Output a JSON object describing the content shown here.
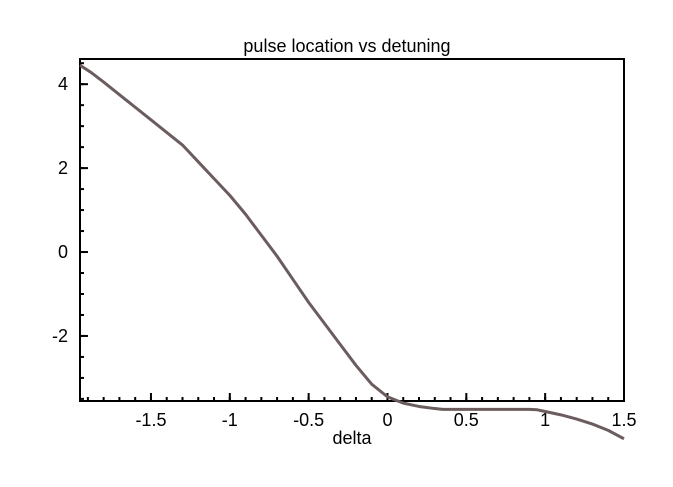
{
  "chart_data": {
    "type": "line",
    "title": "pulse location vs detuning",
    "xlabel": "delta",
    "ylabel": "",
    "xlim": [
      -1.95,
      1.5
    ],
    "ylim": [
      -3.55,
      4.6
    ],
    "x_ticks": [
      -1.5,
      -1,
      -0.5,
      0,
      0.5,
      1,
      1.5
    ],
    "x_tick_labels": [
      "-1.5",
      "-1",
      "-0.5",
      "0",
      "0.5",
      "1",
      "1.5"
    ],
    "y_ticks": [
      4,
      2,
      0,
      -2
    ],
    "y_tick_labels": [
      "4",
      "2",
      "0",
      "-2"
    ],
    "grid": false,
    "series": [
      {
        "name": "",
        "color": "#6b5d5e",
        "x": [
          -1.95,
          -1.88,
          -1.8,
          -1.7,
          -1.6,
          -1.5,
          -1.4,
          -1.3,
          -1.2,
          -1.1,
          -1.0,
          -0.9,
          -0.8,
          -0.7,
          -0.6,
          -0.5,
          -0.45,
          -0.4,
          -0.3,
          -0.2,
          -0.1,
          -0.05,
          0.0,
          0.1,
          0.2,
          0.3,
          0.35,
          0.5,
          0.7,
          0.9,
          0.95,
          1.0,
          1.1,
          1.2,
          1.3,
          1.4,
          1.5
        ],
        "y": [
          4.45,
          4.28,
          4.05,
          3.75,
          3.45,
          3.15,
          2.85,
          2.55,
          2.15,
          1.75,
          1.35,
          0.9,
          0.4,
          -0.1,
          -0.65,
          -1.2,
          -1.45,
          -1.7,
          -2.2,
          -2.7,
          -3.15,
          -3.3,
          -3.45,
          -3.6,
          -3.68,
          -3.73,
          -3.75,
          -3.75,
          -3.75,
          -3.75,
          -3.76,
          -3.8,
          -3.88,
          -3.98,
          -4.1,
          -4.25,
          -4.45
        ]
      }
    ]
  }
}
